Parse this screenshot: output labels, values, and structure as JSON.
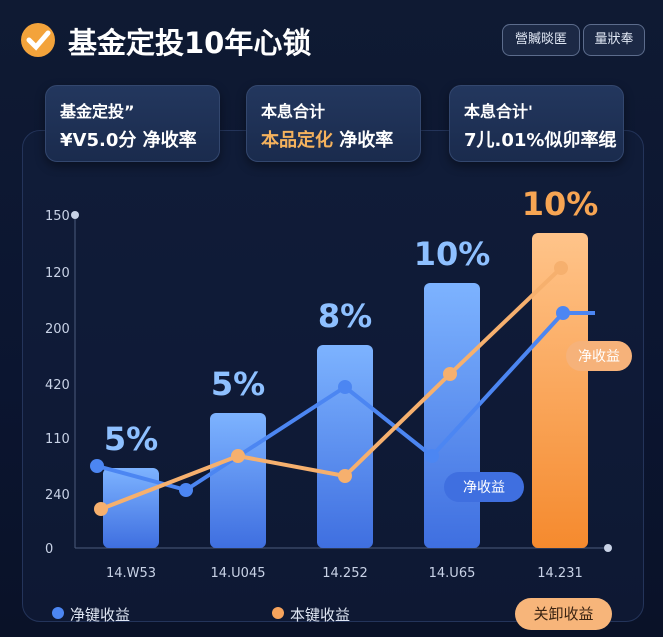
{
  "header": {
    "title": "基金定投10年心锁",
    "buttons": [
      "營贓晱匿",
      "量狀奉"
    ]
  },
  "cards": [
    {
      "label": "基金定投”",
      "value": "¥V5.0分 净收率"
    },
    {
      "label": "本息合计",
      "value_highlight": "本品定化",
      "value": " 净收率"
    },
    {
      "label": "本息合计'",
      "value": "7儿.01%似卯率绲"
    }
  ],
  "chart": {
    "y_labels": [
      "150",
      "120",
      "200",
      "420",
      "110",
      "240",
      "0"
    ],
    "x_labels": [
      "14.W53",
      "14.U045",
      "14.252",
      "14.U65",
      "14.231"
    ],
    "bar_labels": [
      "5%",
      "5%",
      "8%",
      "10%",
      "10%"
    ],
    "callouts": [
      "净收益",
      "净收益"
    ]
  },
  "legend": [
    "净键收益",
    "本键收益"
  ],
  "action_button": "关卸收益"
}
